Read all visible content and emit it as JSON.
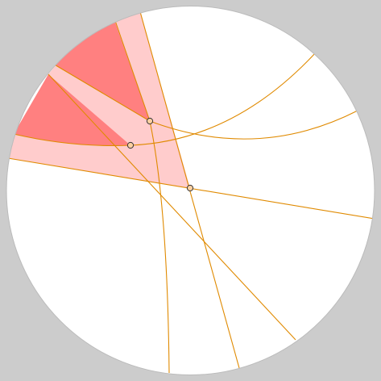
{
  "canvas": {
    "background_color": "#cccccc",
    "disk_fill": "#ffffff",
    "line_color": "#e08a00",
    "region_light_color": "#ffcccc",
    "region_dark_color": "#ff8080",
    "vertex_fill": "#ffd0a0",
    "vertex_stroke": "#333333"
  },
  "diagram": {
    "description_type": "hyperbolic-plane-disk",
    "vertices": [
      {
        "id": "v1",
        "label": ""
      },
      {
        "id": "v2",
        "label": ""
      },
      {
        "id": "v3",
        "label": ""
      }
    ]
  }
}
